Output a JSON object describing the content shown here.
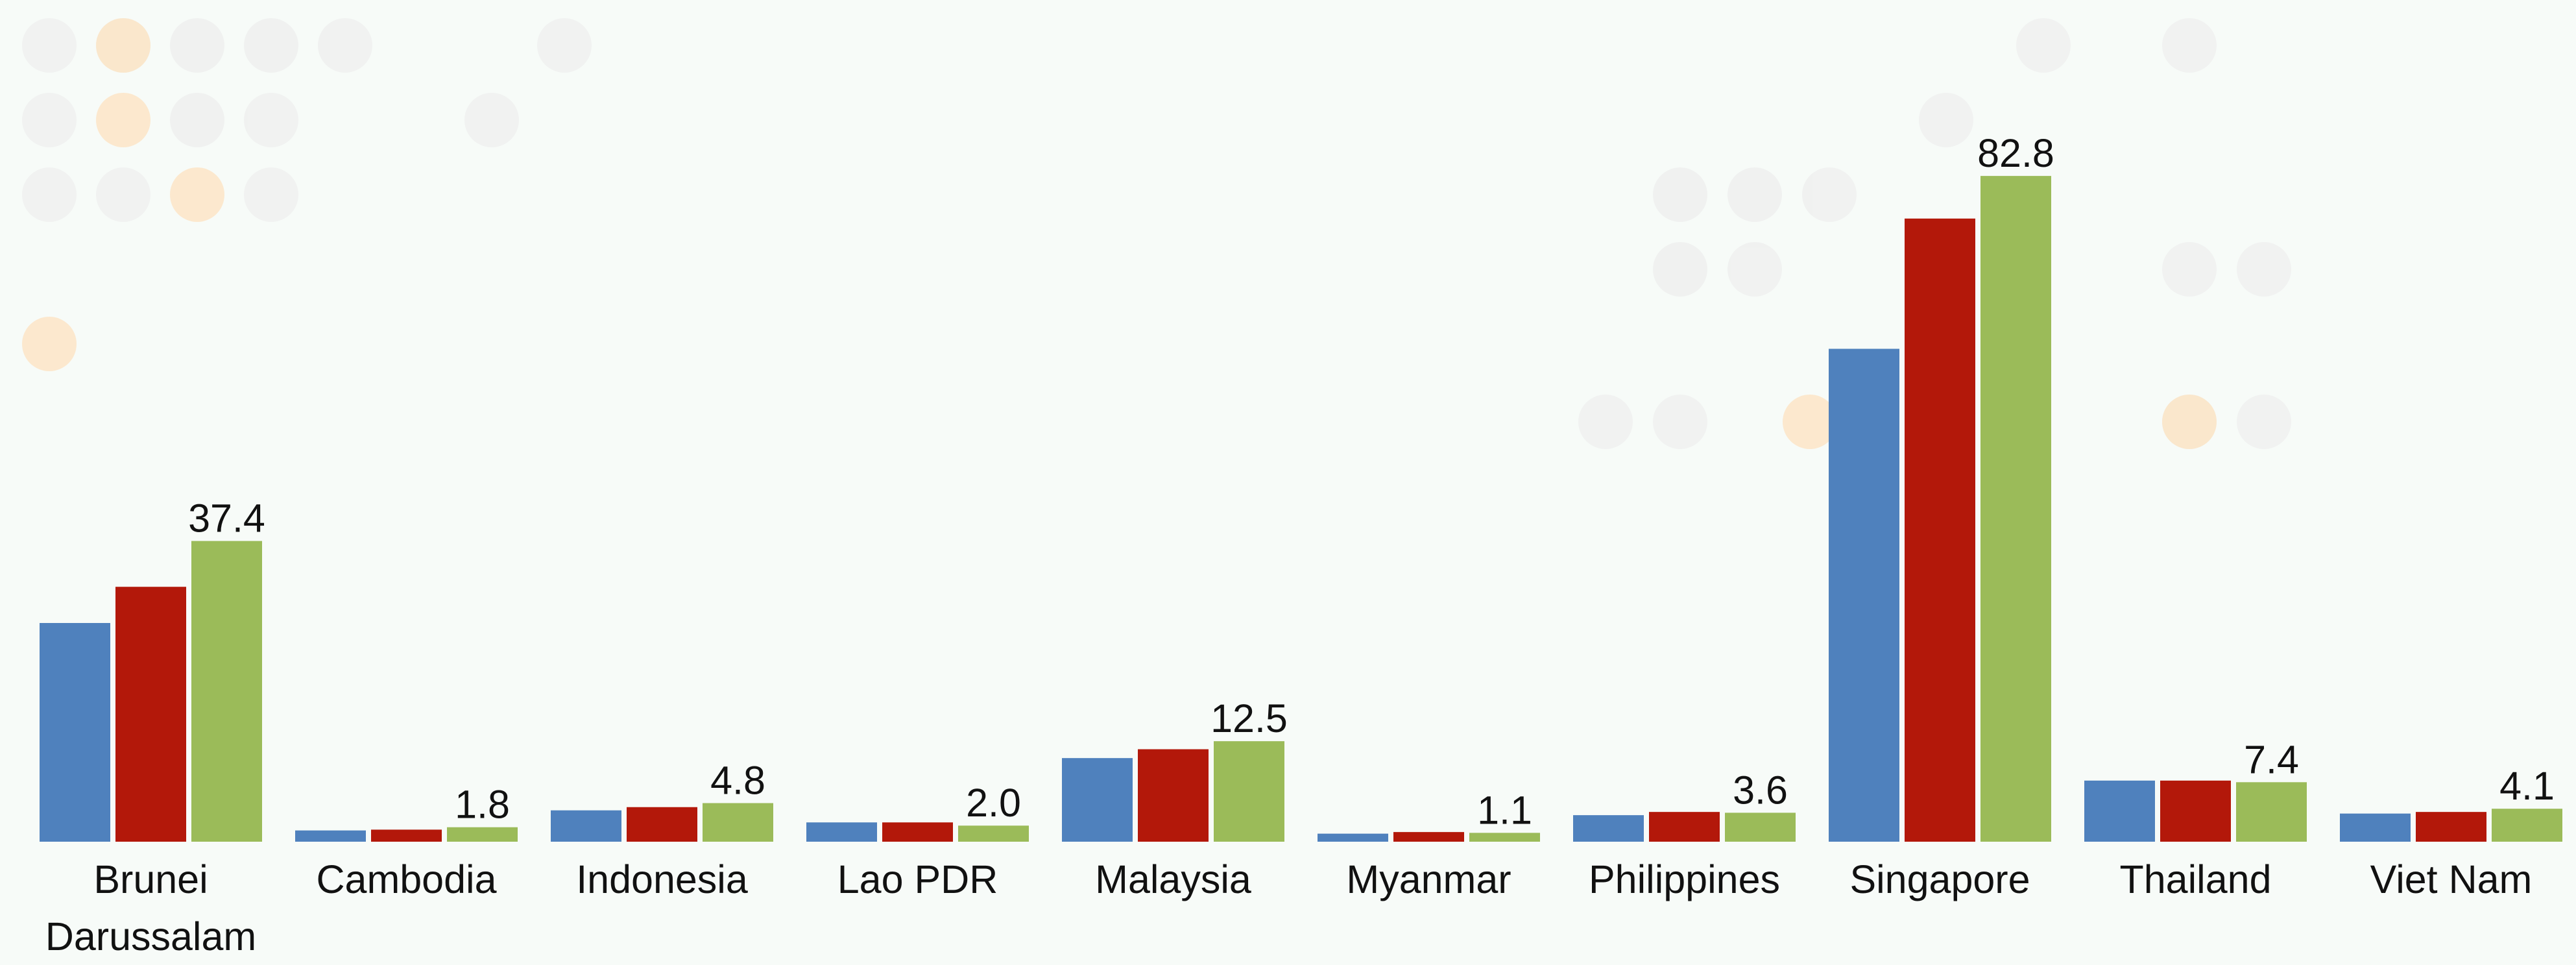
{
  "chart_data": {
    "type": "bar",
    "categories": [
      "Brunei Darussalam",
      "Cambodia",
      "Indonesia",
      "Lao PDR",
      "Malaysia",
      "Myanmar",
      "Philippines",
      "Singapore",
      "Thailand",
      "Viet Nam"
    ],
    "series": [
      {
        "color": "#4f81bd",
        "values": [
          27.2,
          1.4,
          3.9,
          2.4,
          10.4,
          1.0,
          3.3,
          61.3,
          7.6,
          3.5
        ]
      },
      {
        "color": "#b3180a",
        "values": [
          31.7,
          1.5,
          4.3,
          2.4,
          11.5,
          1.2,
          3.7,
          77.5,
          7.6,
          3.7
        ]
      },
      {
        "color": "#9bbb59",
        "values": [
          37.4,
          1.8,
          4.8,
          2.0,
          12.5,
          1.1,
          3.6,
          82.8,
          7.4,
          4.1
        ],
        "value_labels": [
          "37.4",
          "1.8",
          "4.8",
          "2.0",
          "12.5",
          "1.1",
          "3.6",
          "82.8",
          "7.4",
          "4.1"
        ]
      }
    ],
    "ylim": [
      0,
      100
    ]
  }
}
